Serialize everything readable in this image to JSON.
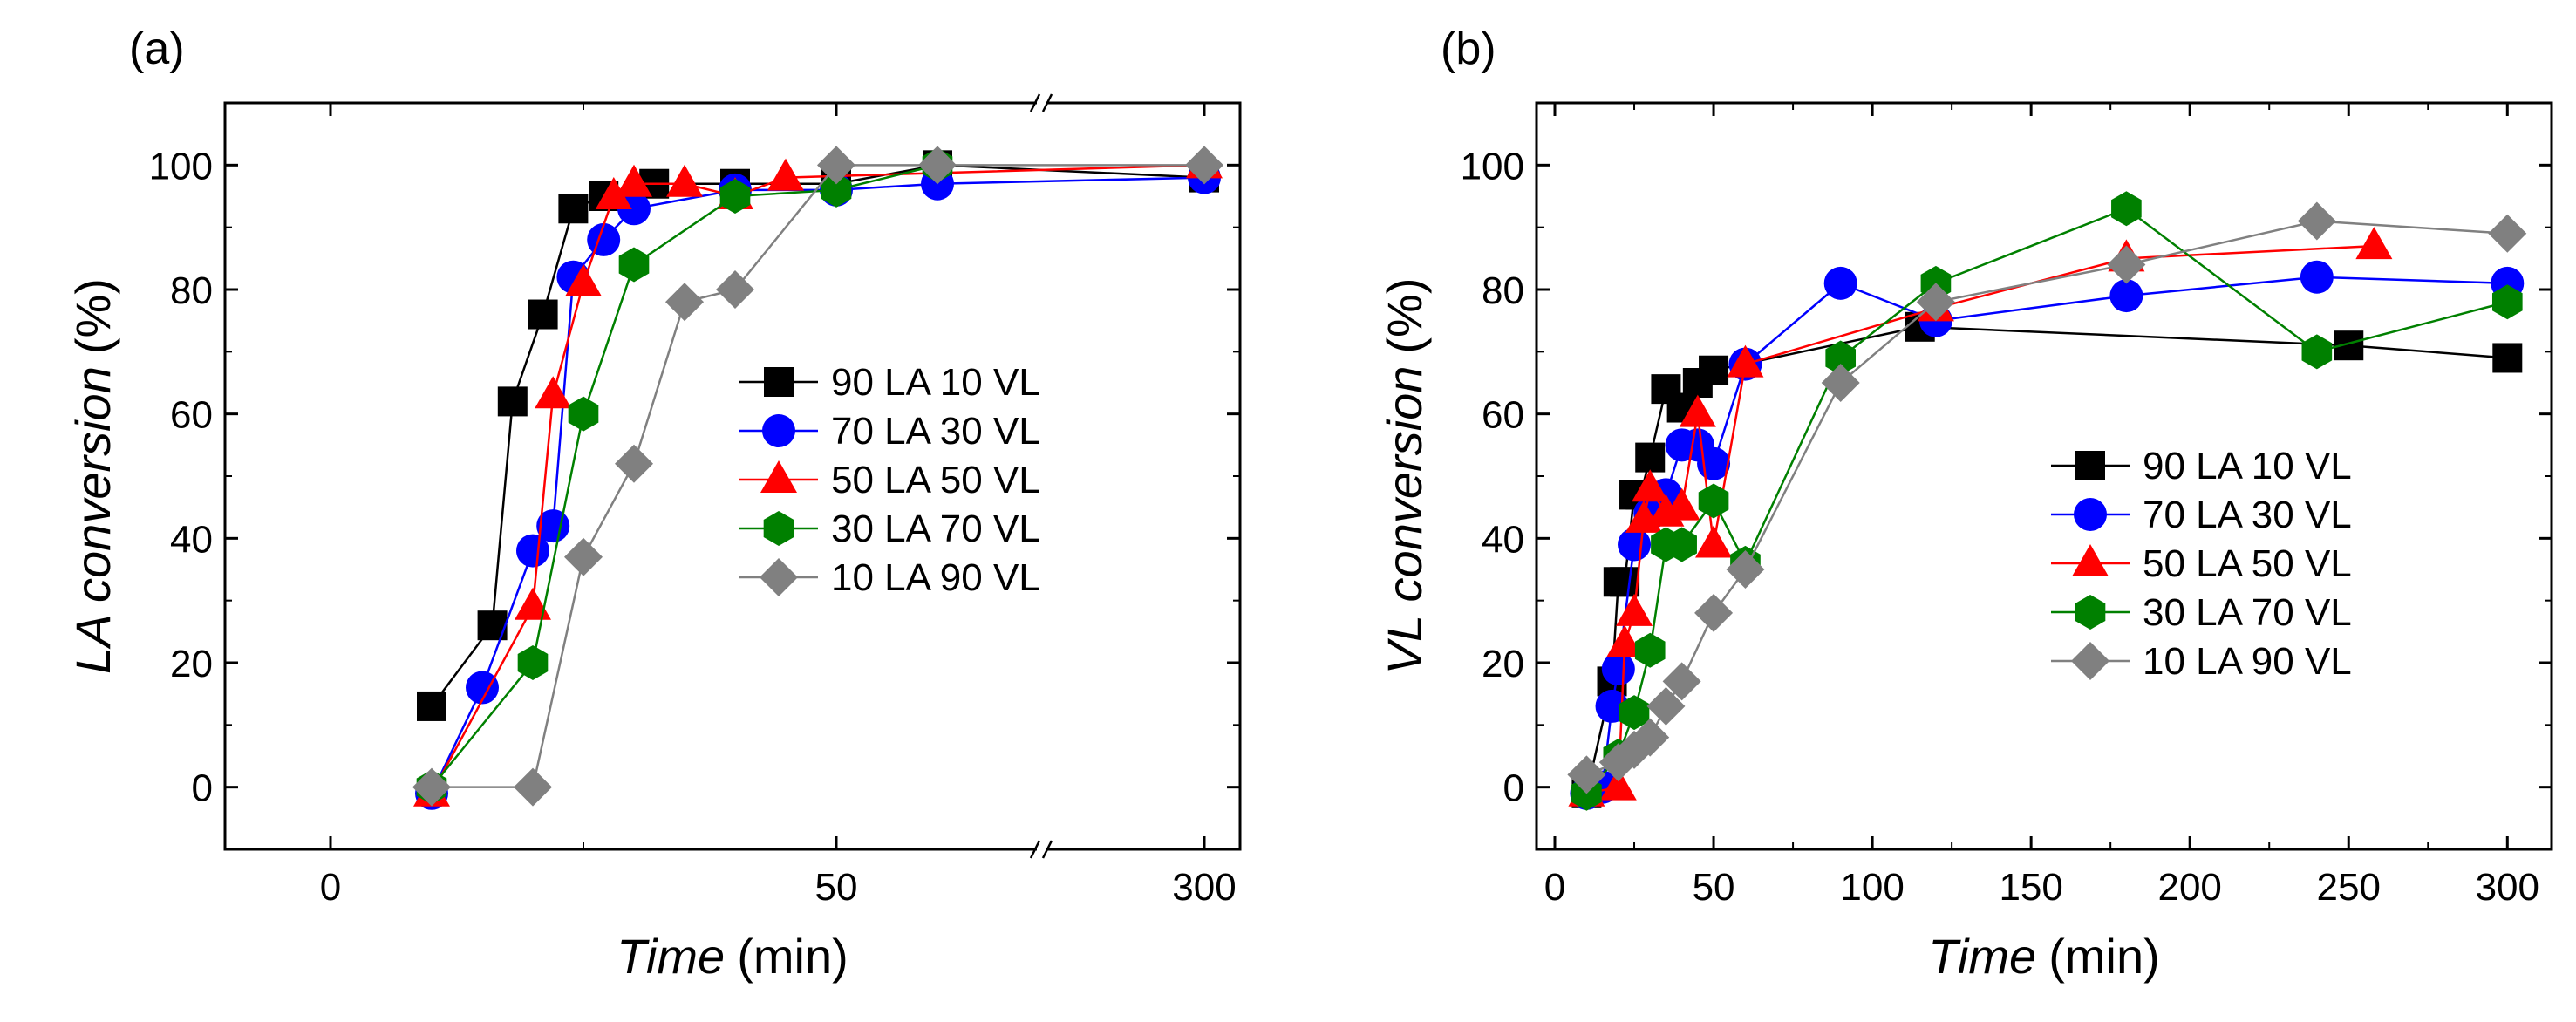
{
  "colors": {
    "s1": "#000000",
    "s2": "#0000ff",
    "s3": "#ff0000",
    "s4": "#008000",
    "s5": "#808080"
  },
  "chart_data": [
    {
      "type": "line",
      "panel_label": "(a)",
      "xlabel_italic": "Time",
      "xlabel_unit": "(min)",
      "ylabel_italic": "LA conversion",
      "ylabel_unit": "(%)",
      "x_axis_break": {
        "segment1_range": [
          -10,
          70
        ],
        "break_after": 70,
        "segment2_range": [
          295,
          300
        ]
      },
      "ylim": [
        -10,
        110
      ],
      "xticks": [
        {
          "value": 0,
          "label": "0"
        },
        {
          "value": 50,
          "label": "50"
        },
        {
          "value": 300,
          "label": "300"
        }
      ],
      "yticks": [
        {
          "value": 0,
          "label": "0"
        },
        {
          "value": 20,
          "label": "20"
        },
        {
          "value": 40,
          "label": "40"
        },
        {
          "value": 60,
          "label": "60"
        },
        {
          "value": 80,
          "label": "80"
        },
        {
          "value": 100,
          "label": "100"
        }
      ],
      "legend_position": "center-right",
      "series": [
        {
          "name": "90 LA 10 VL",
          "marker": "square",
          "color": "#000000",
          "x": [
            10,
            16,
            18,
            21,
            24,
            27,
            32,
            40,
            50,
            60,
            300
          ],
          "y": [
            13,
            26,
            62,
            76,
            93,
            95,
            97,
            97,
            97,
            100,
            98
          ]
        },
        {
          "name": "70 LA 30 VL",
          "marker": "circle",
          "color": "#0000ff",
          "x": [
            10,
            15,
            20,
            22,
            24,
            27,
            30,
            40,
            50,
            60,
            300
          ],
          "y": [
            -1,
            16,
            38,
            42,
            82,
            88,
            93,
            96,
            96,
            97,
            98
          ]
        },
        {
          "name": "50 LA 50 VL",
          "marker": "triangle",
          "color": "#ff0000",
          "x": [
            10,
            20,
            22,
            25,
            28,
            30,
            35,
            40,
            45,
            300
          ],
          "y": [
            -1,
            29,
            63,
            81,
            95,
            97,
            97,
            95,
            98,
            100
          ]
        },
        {
          "name": "30 LA 70 VL",
          "marker": "hexagon",
          "color": "#008000",
          "x": [
            10,
            20,
            25,
            30,
            40,
            50,
            60
          ],
          "y": [
            0,
            20,
            60,
            84,
            95,
            96,
            100
          ]
        },
        {
          "name": "10 LA 90 VL",
          "marker": "diamond",
          "color": "#808080",
          "x": [
            10,
            20,
            25,
            30,
            35,
            40,
            50,
            60,
            300
          ],
          "y": [
            0,
            0,
            37,
            52,
            78,
            80,
            100,
            100,
            100
          ]
        }
      ]
    },
    {
      "type": "line",
      "panel_label": "(b)",
      "xlabel_italic": "Time",
      "xlabel_unit": "(min)",
      "ylabel_italic": "VL conversion",
      "ylabel_unit": "(%)",
      "xlim": [
        -8,
        305
      ],
      "ylim": [
        -10,
        110
      ],
      "xticks": [
        {
          "value": 0,
          "label": "0"
        },
        {
          "value": 50,
          "label": "50"
        },
        {
          "value": 100,
          "label": "100"
        },
        {
          "value": 150,
          "label": "150"
        },
        {
          "value": 200,
          "label": "200"
        },
        {
          "value": 250,
          "label": "250"
        },
        {
          "value": 300,
          "label": "300"
        }
      ],
      "yticks": [
        {
          "value": 0,
          "label": "0"
        },
        {
          "value": 20,
          "label": "20"
        },
        {
          "value": 40,
          "label": "40"
        },
        {
          "value": 60,
          "label": "60"
        },
        {
          "value": 80,
          "label": "80"
        },
        {
          "value": 100,
          "label": "100"
        }
      ],
      "legend_position": "center-right",
      "series": [
        {
          "name": "90 LA 10 VL",
          "marker": "square",
          "color": "#000000",
          "x": [
            10,
            18,
            20,
            22,
            25,
            27,
            30,
            35,
            40,
            45,
            50,
            115,
            250,
            300
          ],
          "y": [
            -1,
            17,
            33,
            33,
            47,
            47,
            53,
            64,
            61,
            65,
            67,
            74,
            71,
            69
          ]
        },
        {
          "name": "70 LA 30 VL",
          "marker": "circle",
          "color": "#0000ff",
          "x": [
            10,
            15,
            18,
            20,
            25,
            30,
            35,
            40,
            45,
            50,
            60,
            90,
            120,
            180,
            240,
            300
          ],
          "y": [
            -1,
            0,
            13,
            19,
            39,
            44,
            47,
            55,
            55,
            52,
            68,
            81,
            75,
            79,
            82,
            81
          ]
        },
        {
          "name": "50 LA 50 VL",
          "marker": "triangle",
          "color": "#ff0000",
          "x": [
            10,
            20,
            22,
            25,
            28,
            30,
            35,
            40,
            45,
            50,
            60,
            120,
            180,
            258
          ],
          "y": [
            -1,
            0,
            23,
            28,
            43,
            48,
            44,
            45,
            60,
            39,
            68,
            77,
            85,
            87
          ]
        },
        {
          "name": "30 LA 70 VL",
          "marker": "hexagon",
          "color": "#008000",
          "x": [
            10,
            20,
            25,
            30,
            35,
            40,
            50,
            60,
            90,
            120,
            180,
            240,
            300
          ],
          "y": [
            -1,
            5,
            12,
            22,
            39,
            39,
            46,
            36,
            69,
            81,
            93,
            70,
            78
          ]
        },
        {
          "name": "10 LA 90 VL",
          "marker": "diamond",
          "color": "#808080",
          "x": [
            10,
            20,
            25,
            30,
            35,
            40,
            50,
            60,
            90,
            120,
            180,
            240,
            300
          ],
          "y": [
            2,
            4,
            6,
            8,
            13,
            17,
            28,
            35,
            65,
            78,
            84,
            91,
            89
          ]
        }
      ]
    }
  ]
}
